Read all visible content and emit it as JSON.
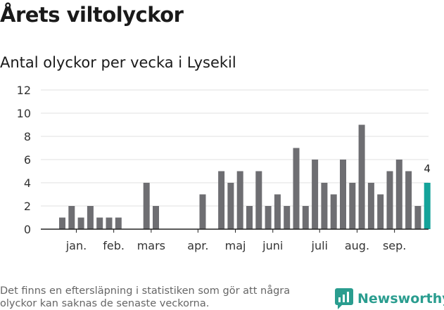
{
  "header": {
    "title": "Årets viltolyckor",
    "subtitle": "Antal olyckor per vecka i Lysekil"
  },
  "footer": {
    "note": "Det finns en eftersläpning i statistiken som gör att några olyckor kan saknas de senaste veckorna.",
    "brand": "Newsworthy"
  },
  "colors": {
    "bar": "#6e6e72",
    "highlight": "#14a39a",
    "grid": "#e0e0e0",
    "axis": "#222222",
    "brand": "#2a9d8f"
  },
  "chart_data": {
    "type": "bar",
    "xlabel": "",
    "ylabel": "",
    "ylim": [
      0,
      12
    ],
    "yticks": [
      0,
      2,
      4,
      6,
      8,
      10,
      12
    ],
    "grid": true,
    "x": [
      1,
      2,
      3,
      4,
      5,
      6,
      7,
      8,
      9,
      10,
      11,
      12,
      13,
      14,
      15,
      16,
      17,
      18,
      19,
      20,
      21,
      22,
      23,
      24,
      25,
      26,
      27,
      28,
      29,
      30,
      31,
      32,
      33,
      34,
      35,
      36,
      37,
      38,
      39,
      40
    ],
    "values": [
      1,
      2,
      1,
      2,
      1,
      1,
      1,
      0,
      0,
      4,
      2,
      0,
      0,
      0,
      0,
      3,
      0,
      5,
      4,
      5,
      2,
      5,
      2,
      3,
      2,
      7,
      2,
      6,
      4,
      3,
      6,
      4,
      9,
      4,
      3,
      5,
      6,
      5,
      2,
      4
    ],
    "highlight_index": 39,
    "highlight_label": "4",
    "month_labels": [
      {
        "label": "jan.",
        "x": 2.5
      },
      {
        "label": "feb.",
        "x": 6.5
      },
      {
        "label": "mars",
        "x": 10.5
      },
      {
        "label": "apr.",
        "x": 15.5
      },
      {
        "label": "maj",
        "x": 19.5
      },
      {
        "label": "juni",
        "x": 23.5
      },
      {
        "label": "juli",
        "x": 28.5
      },
      {
        "label": "aug.",
        "x": 32.5
      },
      {
        "label": "sep.",
        "x": 36.5
      }
    ]
  }
}
